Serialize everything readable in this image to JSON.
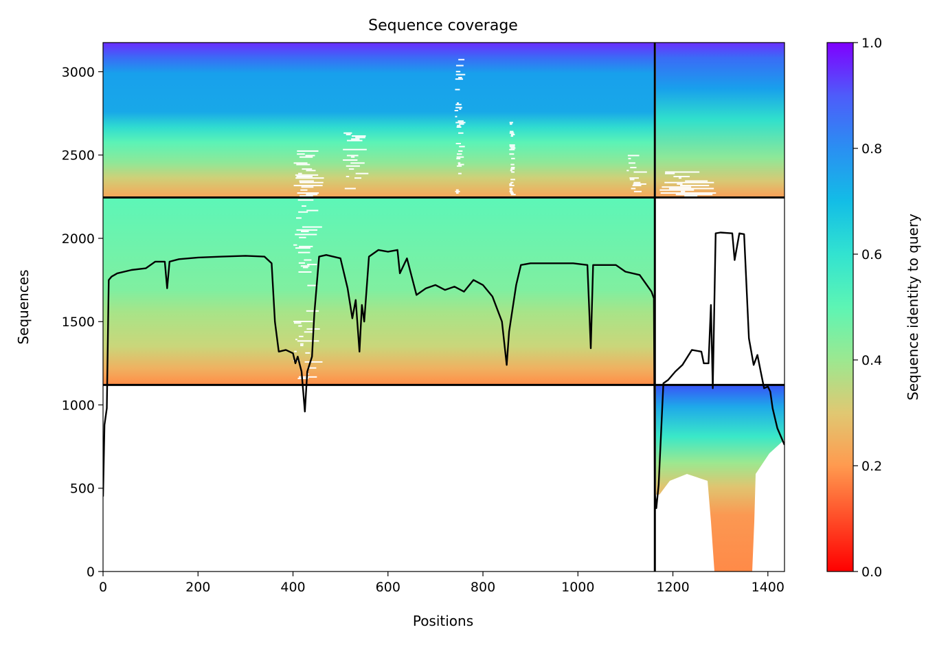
{
  "chart_data": {
    "type": "heatmap",
    "title": "Sequence coverage",
    "xlabel": "Positions",
    "ylabel": "Sequences",
    "xlim": [
      0,
      1435
    ],
    "ylim": [
      0,
      3175
    ],
    "x_ticks": [
      0,
      200,
      400,
      600,
      800,
      1000,
      1200,
      1400
    ],
    "y_ticks": [
      0,
      500,
      1000,
      1500,
      2000,
      2500,
      3000
    ],
    "segment_boundaries_x": [
      1162
    ],
    "group_boundaries_y": [
      1120,
      2245
    ],
    "colorbar": {
      "label": "Sequence identity to query",
      "colormap": "rainbow_r",
      "range": [
        0.0,
        1.0
      ],
      "ticks": [
        0.0,
        0.2,
        0.4,
        0.6,
        0.8,
        1.0
      ],
      "tick_labels": [
        "0.0",
        "0.2",
        "0.4",
        "0.6",
        "0.8",
        "1.0"
      ]
    },
    "coverage_line": {
      "x": [
        0,
        3,
        8,
        12,
        18,
        30,
        60,
        90,
        110,
        130,
        135,
        140,
        160,
        200,
        250,
        300,
        340,
        355,
        362,
        370,
        385,
        400,
        405,
        410,
        418,
        425,
        430,
        440,
        445,
        455,
        470,
        500,
        515,
        525,
        532,
        540,
        545,
        550,
        560,
        580,
        600,
        620,
        625,
        640,
        660,
        680,
        700,
        720,
        740,
        760,
        780,
        800,
        820,
        840,
        850,
        855,
        870,
        880,
        900,
        940,
        960,
        990,
        1020,
        1027,
        1032,
        1060,
        1080,
        1100,
        1130,
        1155,
        1160,
        1162,
        1165,
        1170,
        1180,
        1190,
        1205,
        1220,
        1240,
        1260,
        1265,
        1275,
        1280,
        1284,
        1290,
        1300,
        1325,
        1330,
        1340,
        1350,
        1360,
        1370,
        1378,
        1385,
        1392,
        1400,
        1405,
        1410,
        1420,
        1435
      ],
      "y": [
        450,
        880,
        980,
        1750,
        1770,
        1790,
        1810,
        1820,
        1860,
        1860,
        1700,
        1860,
        1875,
        1885,
        1890,
        1895,
        1890,
        1850,
        1500,
        1320,
        1330,
        1310,
        1250,
        1290,
        1200,
        960,
        1200,
        1290,
        1550,
        1890,
        1900,
        1880,
        1700,
        1520,
        1630,
        1320,
        1600,
        1500,
        1890,
        1930,
        1920,
        1930,
        1790,
        1880,
        1660,
        1700,
        1720,
        1690,
        1710,
        1680,
        1750,
        1720,
        1650,
        1500,
        1240,
        1440,
        1720,
        1840,
        1850,
        1850,
        1850,
        1850,
        1840,
        1340,
        1840,
        1840,
        1840,
        1800,
        1780,
        1680,
        1640,
        470,
        380,
        520,
        1130,
        1150,
        1200,
        1240,
        1330,
        1320,
        1250,
        1250,
        1600,
        1100,
        2030,
        2035,
        2030,
        1870,
        2030,
        2025,
        1400,
        1240,
        1300,
        1200,
        1100,
        1110,
        1080,
        980,
        860,
        760
      ]
    }
  }
}
